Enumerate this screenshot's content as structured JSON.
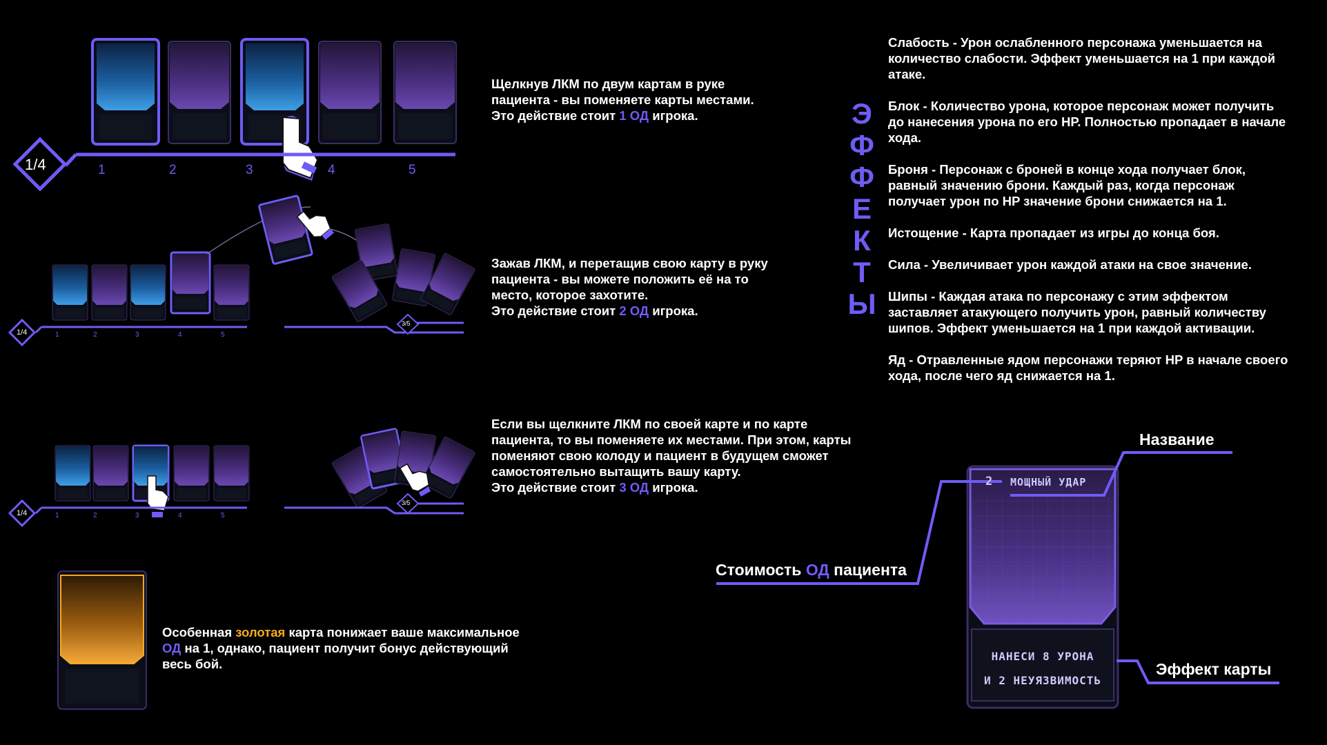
{
  "section1": {
    "counter": "1/4",
    "slots": [
      "1",
      "2",
      "3",
      "4",
      "5"
    ],
    "line1": "Щелкнув ЛКМ по двум картам в руке",
    "line2": "пациента - вы поменяете карты местами.",
    "line3_pre": "Это действие стоит ",
    "line3_hl": "1 ОД",
    "line3_post": " игрока."
  },
  "section2": {
    "counter": "1/4",
    "deck_counter": "3/5",
    "slots": [
      "1",
      "2",
      "3",
      "4",
      "5"
    ],
    "line1": "Зажав ЛКМ, и перетащив свою карту в руку",
    "line2": "пациента - вы можете положить её на то",
    "line3": "место, которое захотите.",
    "line4_pre": "Это действие стоит ",
    "line4_hl": "2 ОД",
    "line4_post": " игрока."
  },
  "section3": {
    "counter": "1/4",
    "deck_counter": "3/5",
    "slots": [
      "1",
      "2",
      "3",
      "4",
      "5"
    ],
    "line1": "Если вы щелкните ЛКМ по своей карте и по карте",
    "line2": "пациента, то вы поменяете их местами. При этом, карты",
    "line3": "поменяют свою колоду и пациент в будущем сможет",
    "line4": "самостоятельно вытащить вашу карту.",
    "line5_pre": "Это действие стоит ",
    "line5_hl": "3 ОД",
    "line5_post": " игрока."
  },
  "gold": {
    "l1_pre": "Особенная ",
    "l1_gold": "золотая",
    "l1_post": " карта понижает ваше максимальное",
    "l2_hl": "ОД",
    "l2_post": " на 1, однако, пациент получит бонус действующий",
    "l3": "весь бой."
  },
  "effects": {
    "vertical_title": [
      "Э",
      "Ф",
      "Ф",
      "Е",
      "К",
      "Т",
      "Ы"
    ],
    "weakness": [
      "Слабость - Урон ослабленного персонажа уменьшается на",
      "количество слабости. Эффект уменьшается на 1 при каждой",
      "атаке."
    ],
    "block": [
      "Блок - Количество урона, которое персонаж может получить",
      "до нанесения урона по его HP. Полностью пропадает в начале",
      "хода."
    ],
    "armor": [
      "Броня - Персонаж с броней в конце хода получает блок,",
      "равный значению брони. Каждый раз, когда персонаж",
      "получает урон по HP значение брони снижается на 1."
    ],
    "exhaust": [
      "Истощение - Карта пропадает из игры до конца боя."
    ],
    "strength": [
      "Сила - Увеличивает урон каждой атаки на свое значение."
    ],
    "thorns": [
      "Шипы - Каждая атака по персонажу с этим эффектом",
      "заставляет атакующего получить урон, равный количеству",
      "шипов. Эффект уменьшается на 1 при каждой активации."
    ],
    "poison": [
      "Яд - Отравленные ядом персонажи теряют HP в начале своего",
      "хода, после чего яд снижается на 1."
    ]
  },
  "card": {
    "cost": "2",
    "name": "МОЩНЫЙ УДАР",
    "effect_line1": "НАНЕСИ 8 УРОНА",
    "effect_line2": "И 2 НЕУЯЗВИМОСТЬ",
    "label_name": "Название",
    "label_cost_pre": "Стоимость ",
    "label_cost_hl": "ОД",
    "label_cost_post": " пациента",
    "label_effect": "Эффект карты"
  },
  "colors": {
    "accent": "#6e5cf6",
    "gold": "#f6ab1e",
    "card_blue": "#1f6fb5",
    "card_purple": "#5b3a9c"
  }
}
